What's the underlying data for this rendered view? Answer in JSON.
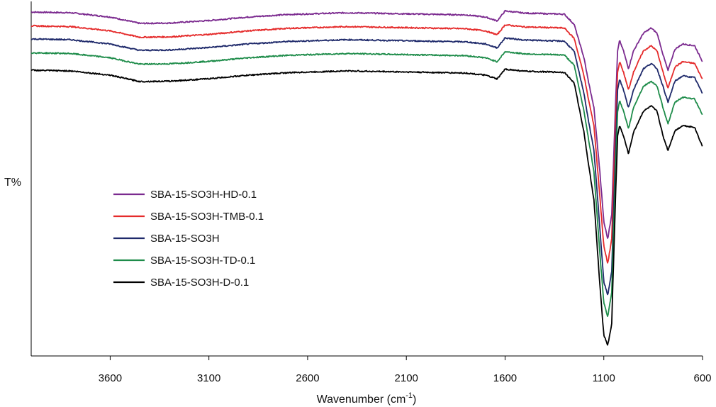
{
  "chart_data": {
    "type": "line",
    "xlabel": "Wavenumber (cm",
    "xlabel_sup": "-1",
    "xlabel_close": ")",
    "ylabel": "T%",
    "x_reversed": true,
    "xlim": [
      4000,
      600
    ],
    "ylim": [
      0,
      100
    ],
    "x_ticks": [
      3600,
      3100,
      2600,
      2100,
      1600,
      1100,
      600
    ],
    "x_tick_labels": [
      "3600",
      "3100",
      "2600",
      "2100",
      "1600",
      "1100",
      "600"
    ],
    "legend_position": "center-left",
    "grid": false,
    "series": [
      {
        "name": "SBA-15-SO3H-HD-0.1",
        "color": "#7b2a8f",
        "points": [
          [
            4000,
            97.0
          ],
          [
            3800,
            96.8
          ],
          [
            3600,
            95.6
          ],
          [
            3450,
            93.8
          ],
          [
            3300,
            93.9
          ],
          [
            3100,
            94.6
          ],
          [
            2900,
            95.6
          ],
          [
            2700,
            96.3
          ],
          [
            2400,
            96.8
          ],
          [
            2100,
            96.5
          ],
          [
            1800,
            96.2
          ],
          [
            1700,
            95.6
          ],
          [
            1640,
            94.5
          ],
          [
            1600,
            97.3
          ],
          [
            1500,
            96.7
          ],
          [
            1300,
            96.4
          ],
          [
            1250,
            93.5
          ],
          [
            1200,
            84.0
          ],
          [
            1180,
            78.0
          ],
          [
            1150,
            70.0
          ],
          [
            1120,
            52.0
          ],
          [
            1100,
            38.0
          ],
          [
            1080,
            33.0
          ],
          [
            1060,
            40.0
          ],
          [
            1040,
            72.0
          ],
          [
            1030,
            86.0
          ],
          [
            1020,
            89.0
          ],
          [
            1000,
            86.0
          ],
          [
            975,
            81.0
          ],
          [
            950,
            86.0
          ],
          [
            900,
            91.0
          ],
          [
            860,
            92.5
          ],
          [
            830,
            91.0
          ],
          [
            800,
            85.0
          ],
          [
            775,
            80.5
          ],
          [
            740,
            86.5
          ],
          [
            700,
            88.0
          ],
          [
            640,
            87.5
          ],
          [
            600,
            83.0
          ]
        ]
      },
      {
        "name": "SBA-15-SO3H-TMB-0.1",
        "color": "#e52b2b",
        "points": [
          [
            4000,
            93.1
          ],
          [
            3800,
            92.9
          ],
          [
            3600,
            91.7
          ],
          [
            3450,
            89.9
          ],
          [
            3300,
            90.0
          ],
          [
            3100,
            90.7
          ],
          [
            2900,
            91.7
          ],
          [
            2700,
            92.4
          ],
          [
            2400,
            92.9
          ],
          [
            2100,
            92.6
          ],
          [
            1800,
            92.3
          ],
          [
            1700,
            91.7
          ],
          [
            1640,
            90.6
          ],
          [
            1600,
            93.4
          ],
          [
            1500,
            92.8
          ],
          [
            1300,
            92.5
          ],
          [
            1250,
            89.6
          ],
          [
            1200,
            79.0
          ],
          [
            1180,
            73.0
          ],
          [
            1150,
            65.0
          ],
          [
            1120,
            45.0
          ],
          [
            1100,
            31.0
          ],
          [
            1080,
            26.0
          ],
          [
            1060,
            33.0
          ],
          [
            1040,
            66.0
          ],
          [
            1030,
            80.0
          ],
          [
            1020,
            83.0
          ],
          [
            1000,
            80.0
          ],
          [
            975,
            75.0
          ],
          [
            950,
            80.0
          ],
          [
            900,
            86.0
          ],
          [
            860,
            87.5
          ],
          [
            830,
            86.0
          ],
          [
            800,
            80.0
          ],
          [
            775,
            75.5
          ],
          [
            740,
            81.5
          ],
          [
            700,
            83.0
          ],
          [
            640,
            82.5
          ],
          [
            600,
            78.0
          ]
        ]
      },
      {
        "name": "SBA-15-SO3H",
        "color": "#1f2a6b",
        "points": [
          [
            4000,
            89.4
          ],
          [
            3800,
            89.2
          ],
          [
            3600,
            88.0
          ],
          [
            3450,
            86.2
          ],
          [
            3300,
            86.3
          ],
          [
            3100,
            87.0
          ],
          [
            2900,
            88.0
          ],
          [
            2700,
            88.7
          ],
          [
            2400,
            89.2
          ],
          [
            2100,
            88.9
          ],
          [
            1800,
            88.6
          ],
          [
            1700,
            88.0
          ],
          [
            1640,
            86.9
          ],
          [
            1600,
            89.7
          ],
          [
            1500,
            89.1
          ],
          [
            1300,
            88.8
          ],
          [
            1250,
            85.9
          ],
          [
            1200,
            74.0
          ],
          [
            1180,
            67.0
          ],
          [
            1150,
            58.0
          ],
          [
            1120,
            36.0
          ],
          [
            1100,
            21.0
          ],
          [
            1080,
            17.0
          ],
          [
            1060,
            24.0
          ],
          [
            1040,
            59.0
          ],
          [
            1030,
            75.0
          ],
          [
            1020,
            78.0
          ],
          [
            1000,
            75.0
          ],
          [
            975,
            70.0
          ],
          [
            950,
            75.0
          ],
          [
            900,
            81.0
          ],
          [
            860,
            82.5
          ],
          [
            830,
            81.0
          ],
          [
            800,
            76.0
          ],
          [
            775,
            71.5
          ],
          [
            740,
            77.5
          ],
          [
            700,
            79.0
          ],
          [
            640,
            78.5
          ],
          [
            600,
            74.0
          ]
        ]
      },
      {
        "name": "SBA-15-SO3H-TD-0.1",
        "color": "#1e8c4a",
        "points": [
          [
            4000,
            85.5
          ],
          [
            3800,
            85.3
          ],
          [
            3600,
            84.1
          ],
          [
            3450,
            82.3
          ],
          [
            3300,
            82.4
          ],
          [
            3100,
            83.1
          ],
          [
            2900,
            84.1
          ],
          [
            2700,
            84.8
          ],
          [
            2400,
            85.3
          ],
          [
            2100,
            85.0
          ],
          [
            1800,
            84.7
          ],
          [
            1700,
            84.1
          ],
          [
            1640,
            83.0
          ],
          [
            1600,
            85.8
          ],
          [
            1500,
            85.2
          ],
          [
            1300,
            84.9
          ],
          [
            1250,
            82.0
          ],
          [
            1200,
            69.0
          ],
          [
            1180,
            62.0
          ],
          [
            1150,
            52.0
          ],
          [
            1120,
            29.0
          ],
          [
            1100,
            15.0
          ],
          [
            1080,
            11.0
          ],
          [
            1060,
            18.0
          ],
          [
            1040,
            53.0
          ],
          [
            1030,
            69.0
          ],
          [
            1020,
            72.0
          ],
          [
            1000,
            69.0
          ],
          [
            975,
            64.0
          ],
          [
            950,
            70.0
          ],
          [
            900,
            76.0
          ],
          [
            860,
            77.5
          ],
          [
            830,
            76.0
          ],
          [
            800,
            70.0
          ],
          [
            775,
            65.5
          ],
          [
            740,
            71.5
          ],
          [
            700,
            73.0
          ],
          [
            640,
            72.5
          ],
          [
            600,
            68.0
          ]
        ]
      },
      {
        "name": "SBA-15-SO3H-D-0.1",
        "color": "#000000",
        "points": [
          [
            4000,
            80.6
          ],
          [
            3800,
            80.4
          ],
          [
            3600,
            79.2
          ],
          [
            3450,
            77.4
          ],
          [
            3300,
            77.5
          ],
          [
            3100,
            78.2
          ],
          [
            2900,
            79.2
          ],
          [
            2700,
            79.9
          ],
          [
            2400,
            80.4
          ],
          [
            2100,
            80.1
          ],
          [
            1800,
            79.8
          ],
          [
            1700,
            79.2
          ],
          [
            1640,
            78.1
          ],
          [
            1600,
            80.9
          ],
          [
            1500,
            80.3
          ],
          [
            1300,
            80.0
          ],
          [
            1250,
            77.0
          ],
          [
            1200,
            63.0
          ],
          [
            1180,
            55.0
          ],
          [
            1150,
            44.0
          ],
          [
            1120,
            20.0
          ],
          [
            1100,
            6.0
          ],
          [
            1080,
            3.0
          ],
          [
            1060,
            9.0
          ],
          [
            1040,
            46.0
          ],
          [
            1030,
            62.0
          ],
          [
            1020,
            65.0
          ],
          [
            1000,
            62.0
          ],
          [
            975,
            57.0
          ],
          [
            950,
            63.0
          ],
          [
            900,
            69.0
          ],
          [
            860,
            70.5
          ],
          [
            830,
            69.0
          ],
          [
            800,
            62.0
          ],
          [
            775,
            58.0
          ],
          [
            740,
            63.5
          ],
          [
            700,
            65.0
          ],
          [
            640,
            64.5
          ],
          [
            600,
            59.0
          ]
        ]
      }
    ]
  }
}
